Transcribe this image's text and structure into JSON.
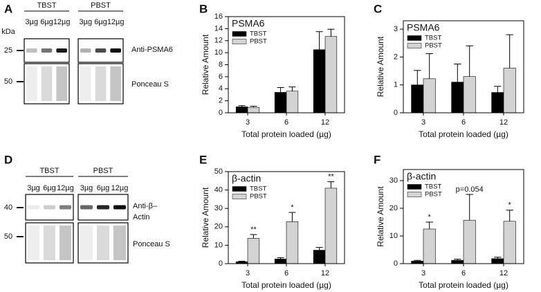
{
  "panel_letters": [
    "A",
    "B",
    "C",
    "D",
    "E",
    "F"
  ],
  "blots": [
    {
      "groups": [
        "TBST",
        "PBST"
      ],
      "lanes": [
        "3µg",
        "6µg",
        "12µg"
      ],
      "kda_label": "kDa",
      "markers": [
        "25",
        "50"
      ],
      "antibody_lines": [
        "Anti-PSMA6"
      ],
      "stain": "Ponceau S"
    },
    {
      "groups": [
        "TBST",
        "PBST"
      ],
      "lanes": [
        "3µg",
        "6µg",
        "12µg"
      ],
      "markers": [
        "40",
        "50"
      ],
      "antibody_lines": [
        "Anti-β–",
        "Actin"
      ],
      "stain": "Ponceau S"
    }
  ],
  "chart_data": [
    {
      "type": "bar",
      "title": "PSMA6",
      "x_label": "Total protein loaded (µg)",
      "y_label": "Relative Amount",
      "categories": [
        "3",
        "6",
        "12"
      ],
      "ylim": [
        0,
        16
      ],
      "yticks": [
        0,
        2,
        4,
        6,
        8,
        10,
        12,
        14,
        16
      ],
      "legend": "top-left",
      "series": [
        {
          "name": "TBST",
          "color": "#000000",
          "values": [
            1.0,
            3.4,
            10.5
          ],
          "errors": [
            0.2,
            0.8,
            3.0
          ]
        },
        {
          "name": "PBST",
          "color": "#d3d3d3",
          "values": [
            0.9,
            3.6,
            12.7
          ],
          "errors": [
            0.2,
            0.7,
            1.2
          ]
        }
      ]
    },
    {
      "type": "bar",
      "title": "PSMA6",
      "x_label": "Total protein loaded (µg)",
      "y_label": "Relative Amount",
      "categories": [
        "3",
        "6",
        "12"
      ],
      "ylim": [
        0,
        3.3
      ],
      "yticks": [
        0,
        1,
        2,
        3
      ],
      "legend": "top-left",
      "series": [
        {
          "name": "TBST",
          "color": "#000000",
          "values": [
            1.0,
            1.1,
            0.73
          ],
          "errors": [
            0.52,
            0.65,
            0.22
          ]
        },
        {
          "name": "PBST",
          "color": "#d3d3d3",
          "values": [
            1.22,
            1.3,
            1.6
          ],
          "errors": [
            0.9,
            1.1,
            1.2
          ]
        }
      ]
    },
    {
      "type": "bar",
      "title": "β-actin",
      "x_label": "Total protein loaded (µg)",
      "y_label": "Relative Amount",
      "categories": [
        "3",
        "6",
        "12"
      ],
      "ylim": [
        0,
        50
      ],
      "yticks": [
        0,
        10,
        20,
        30,
        40,
        50
      ],
      "legend": "top-left",
      "annotations": [
        "**",
        "*",
        "**"
      ],
      "series": [
        {
          "name": "TBST",
          "color": "#000000",
          "values": [
            1.0,
            2.5,
            7.3
          ],
          "errors": [
            0.3,
            0.7,
            1.5
          ]
        },
        {
          "name": "PBST",
          "color": "#d3d3d3",
          "values": [
            13.8,
            22.8,
            41.0
          ],
          "errors": [
            2.0,
            5.0,
            3.5
          ]
        }
      ]
    },
    {
      "type": "bar",
      "title": "β-actin",
      "x_label": "Total protein loaded (µg)",
      "y_label": "Relative Amount",
      "categories": [
        "3",
        "6",
        "12"
      ],
      "ylim": [
        0,
        34
      ],
      "yticks": [
        0,
        10,
        20,
        30
      ],
      "legend": "top-left",
      "annotations": [
        "*",
        "p=0.054",
        "*"
      ],
      "series": [
        {
          "name": "TBST",
          "color": "#000000",
          "values": [
            0.9,
            1.2,
            1.8
          ],
          "errors": [
            0.3,
            0.4,
            0.5
          ]
        },
        {
          "name": "PBST",
          "color": "#d3d3d3",
          "values": [
            12.5,
            15.7,
            15.3
          ],
          "errors": [
            2.5,
            9.3,
            4.0
          ]
        }
      ]
    }
  ]
}
